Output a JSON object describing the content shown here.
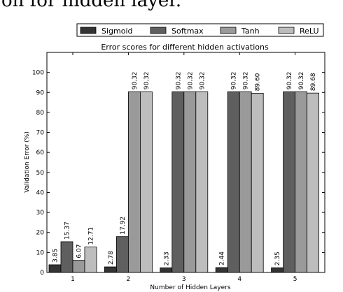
{
  "page_text": "on for hidden layer.",
  "chart_data": {
    "type": "bar",
    "title": "Error scores for different hidden activations",
    "xlabel": "Number of Hidden Layers",
    "ylabel": "Validation Error (%)",
    "categories": [
      "1",
      "2",
      "3",
      "4",
      "5"
    ],
    "ylim": [
      0,
      110
    ],
    "yticks": [
      0,
      10,
      20,
      30,
      40,
      50,
      60,
      70,
      80,
      90,
      100
    ],
    "grid": false,
    "legend_position": "top",
    "series": [
      {
        "name": "Sigmoid",
        "color": "#333333",
        "values": [
          3.85,
          2.78,
          2.33,
          2.44,
          2.35
        ],
        "labels": [
          "3.85",
          "2.78",
          "2.33",
          "2.44",
          "2.35"
        ]
      },
      {
        "name": "Softmax",
        "color": "#5f5f5f",
        "values": [
          15.37,
          17.92,
          90.32,
          90.32,
          90.32
        ],
        "labels": [
          "15.37",
          "17.92",
          "90.32",
          "90.32",
          "90.32"
        ]
      },
      {
        "name": "Tanh",
        "color": "#9a9a9a",
        "values": [
          6.07,
          90.32,
          90.32,
          90.32,
          90.32
        ],
        "labels": [
          "6.07",
          "90.32",
          "90.32",
          "90.32",
          "90.32"
        ]
      },
      {
        "name": "ReLU",
        "color": "#bdbdbd",
        "values": [
          12.71,
          90.32,
          90.32,
          89.6,
          89.68
        ],
        "labels": [
          "12.71",
          "90.32",
          "90.32",
          "89.60",
          "89.68"
        ]
      }
    ]
  }
}
